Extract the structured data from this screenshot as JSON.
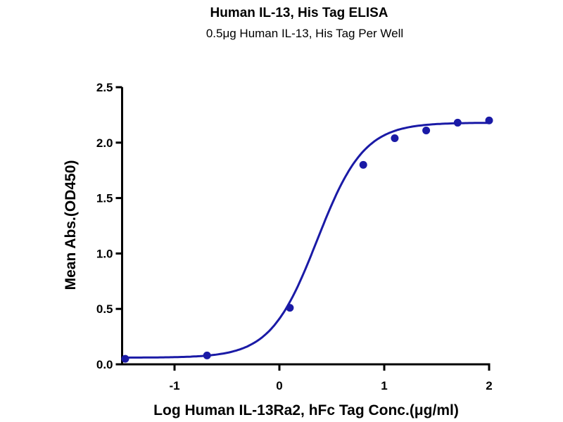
{
  "chart_data": {
    "type": "scatter",
    "title": "Human IL-13, His Tag ELISA",
    "subtitle": "0.5μg Human IL-13, His Tag Per Well",
    "xlabel": "Log Human IL-13Ra2, hFc Tag Conc.(μg/ml)",
    "ylabel": "Mean Abs.(OD450)",
    "xlim": [
      -1.5,
      2
    ],
    "ylim": [
      0,
      2.5
    ],
    "xticks": [
      -1,
      0,
      1,
      2
    ],
    "xtick_labels": [
      "-1",
      "0",
      "1",
      "2"
    ],
    "yticks": [
      0,
      0.5,
      1,
      1.5,
      2,
      2.5
    ],
    "ytick_labels": [
      "0.0",
      "0.5",
      "1.0",
      "1.5",
      "2.0",
      "2.5"
    ],
    "grid": false,
    "color": "#1a1aa6",
    "points": [
      {
        "x": -1.47,
        "y": 0.05
      },
      {
        "x": -0.69,
        "y": 0.08
      },
      {
        "x": 0.1,
        "y": 0.51
      },
      {
        "x": 0.8,
        "y": 1.8
      },
      {
        "x": 1.1,
        "y": 2.04
      },
      {
        "x": 1.4,
        "y": 2.11
      },
      {
        "x": 1.7,
        "y": 2.18
      },
      {
        "x": 2.0,
        "y": 2.2
      }
    ],
    "fit_curve": {
      "model": "4PL",
      "bottom": 0.06,
      "top": 2.18,
      "logEC50": 0.36,
      "hill": 1.95
    }
  }
}
